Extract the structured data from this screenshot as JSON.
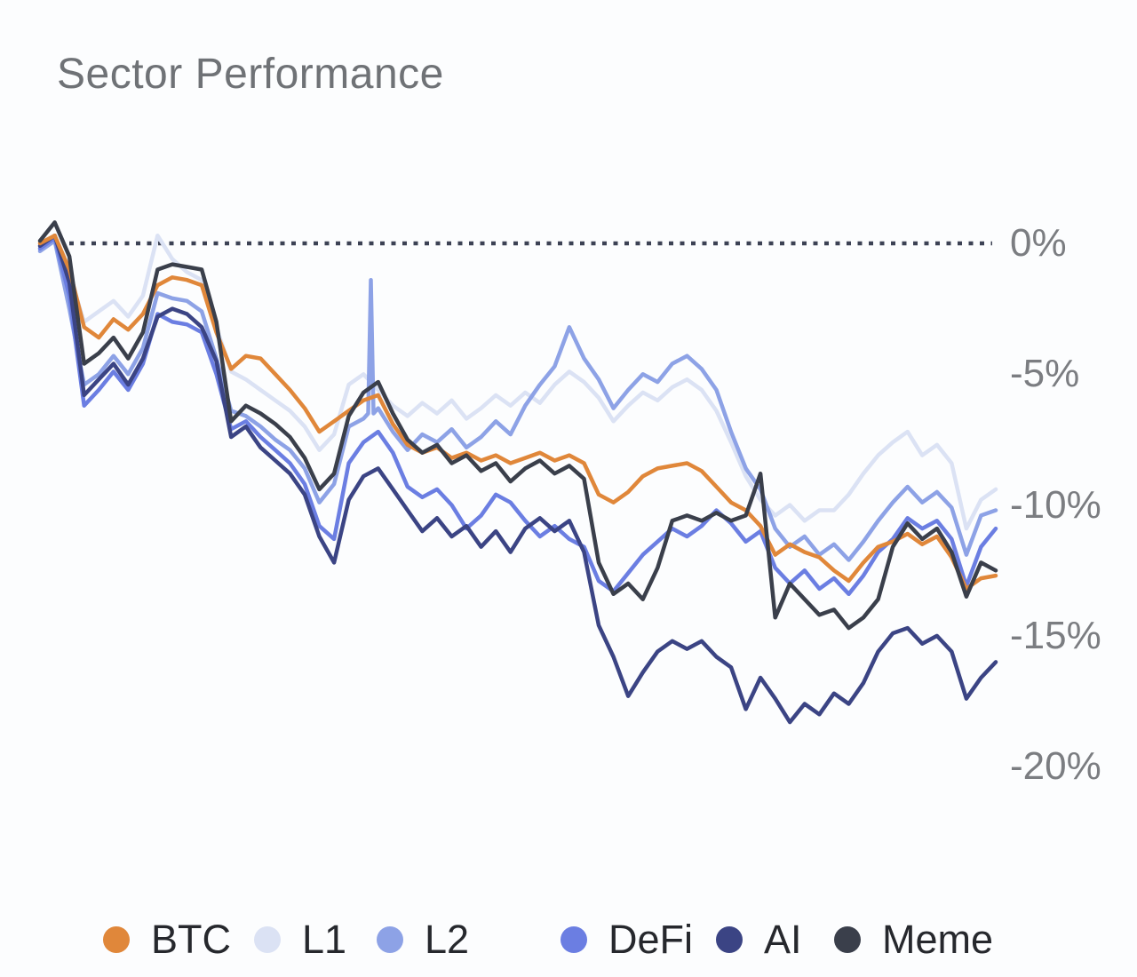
{
  "axis": {
    "ticks": [
      {
        "label": "0%",
        "pct": 0
      },
      {
        "label": "-5%",
        "pct": -5
      },
      {
        "label": "-10%",
        "pct": -10
      },
      {
        "label": "-15%",
        "pct": -15
      },
      {
        "label": "-20%",
        "pct": -20
      }
    ]
  },
  "zero_line": {
    "style": "dotted",
    "pct": 0,
    "color": "#3c4254"
  },
  "chart_data": {
    "type": "line",
    "title": "Sector Performance",
    "xlabel": "",
    "ylabel": "",
    "ylim": [
      -20,
      2
    ],
    "grid": false,
    "legend_position": "bottom",
    "y_tick_labels": [
      "0%",
      "-5%",
      "-10%",
      "-15%",
      "-20%"
    ],
    "series": [
      {
        "name": "BTC",
        "color": "#e0873a",
        "values": [
          0.0,
          0.3,
          -1.0,
          -3.2,
          -3.6,
          -2.9,
          -3.3,
          -2.7,
          -1.6,
          -1.3,
          -1.4,
          -1.6,
          -3.4,
          -4.8,
          -4.3,
          -4.4,
          -5.0,
          -5.6,
          -6.3,
          -7.2,
          -6.8,
          -6.4,
          -6.0,
          -5.8,
          -6.9,
          -7.7,
          -8.0,
          -7.8,
          -8.2,
          -8.0,
          -8.3,
          -8.1,
          -8.4,
          -8.2,
          -8.0,
          -8.3,
          -8.1,
          -8.4,
          -9.6,
          -9.9,
          -9.5,
          -8.9,
          -8.6,
          -8.5,
          -8.4,
          -8.7,
          -9.3,
          -9.9,
          -10.2,
          -10.8,
          -11.9,
          -11.5,
          -11.8,
          -12.0,
          -12.5,
          -12.9,
          -12.2,
          -11.6,
          -11.4,
          -11.1,
          -11.5,
          -11.2,
          -12.0,
          -13.2,
          -12.8,
          -12.7
        ]
      },
      {
        "name": "L1",
        "color": "#dbe2f4",
        "values": [
          -0.2,
          0.3,
          -1.2,
          -3.0,
          -2.6,
          -2.2,
          -2.8,
          -2.0,
          0.3,
          -0.6,
          -1.1,
          -1.4,
          -3.2,
          -4.9,
          -5.2,
          -5.6,
          -6.0,
          -6.4,
          -7.0,
          -7.9,
          -7.3,
          -5.4,
          -5.0,
          -5.6,
          -6.2,
          -6.6,
          -6.1,
          -6.5,
          -6.0,
          -6.7,
          -6.3,
          -5.8,
          -6.2,
          -5.7,
          -6.1,
          -5.4,
          -4.9,
          -5.3,
          -5.9,
          -6.8,
          -6.2,
          -5.7,
          -6.0,
          -5.5,
          -5.2,
          -5.6,
          -6.4,
          -7.6,
          -8.9,
          -9.8,
          -10.4,
          -10.0,
          -10.6,
          -10.2,
          -10.2,
          -9.6,
          -8.8,
          -8.1,
          -7.6,
          -7.2,
          -8.1,
          -7.7,
          -8.4,
          -10.9,
          -9.8,
          -9.4
        ]
      },
      {
        "name": "L2",
        "color": "#8da2e6",
        "spikes": [
          {
            "at": 22.5,
            "top": -1.4
          }
        ],
        "values": [
          -0.3,
          0.1,
          -2.5,
          -5.4,
          -5.0,
          -4.3,
          -5.0,
          -4.0,
          -1.9,
          -2.1,
          -2.2,
          -2.6,
          -4.4,
          -6.4,
          -6.6,
          -7.0,
          -7.5,
          -7.9,
          -8.6,
          -9.9,
          -9.2,
          -7.0,
          -6.7,
          -6.3,
          -7.2,
          -7.9,
          -7.3,
          -7.6,
          -7.1,
          -7.8,
          -7.4,
          -6.8,
          -7.3,
          -6.2,
          -5.4,
          -4.7,
          -3.2,
          -4.4,
          -5.2,
          -6.3,
          -5.6,
          -5.0,
          -5.3,
          -4.6,
          -4.3,
          -4.8,
          -5.6,
          -7.2,
          -8.6,
          -9.4,
          -10.9,
          -11.6,
          -11.2,
          -11.9,
          -11.5,
          -12.1,
          -11.4,
          -10.6,
          -9.9,
          -9.3,
          -9.9,
          -9.5,
          -10.1,
          -11.9,
          -10.4,
          -10.2
        ]
      },
      {
        "name": "DeFi",
        "color": "#6b7ee2",
        "values": [
          -0.2,
          0.2,
          -2.0,
          -6.2,
          -5.6,
          -4.9,
          -5.6,
          -4.6,
          -2.7,
          -3.0,
          -3.1,
          -3.4,
          -5.0,
          -7.1,
          -6.8,
          -7.4,
          -7.9,
          -8.4,
          -9.2,
          -10.8,
          -11.3,
          -8.4,
          -7.6,
          -7.2,
          -8.0,
          -9.3,
          -9.7,
          -9.4,
          -10.0,
          -10.9,
          -10.4,
          -9.6,
          -9.9,
          -10.6,
          -11.2,
          -10.8,
          -11.3,
          -11.6,
          -12.9,
          -13.3,
          -12.6,
          -11.9,
          -11.4,
          -10.9,
          -11.2,
          -10.8,
          -10.2,
          -10.7,
          -11.4,
          -11.0,
          -12.4,
          -13.0,
          -12.5,
          -13.2,
          -12.8,
          -13.4,
          -12.7,
          -11.8,
          -11.3,
          -10.5,
          -10.9,
          -10.6,
          -11.3,
          -13.1,
          -11.6,
          -10.9
        ]
      },
      {
        "name": "AI",
        "color": "#3b4484",
        "values": [
          -0.1,
          0.3,
          -1.5,
          -5.8,
          -5.2,
          -4.6,
          -5.4,
          -4.4,
          -2.8,
          -2.5,
          -2.7,
          -3.2,
          -4.5,
          -7.4,
          -7.0,
          -7.8,
          -8.3,
          -8.8,
          -9.6,
          -11.2,
          -12.2,
          -9.8,
          -8.9,
          -8.6,
          -9.4,
          -10.2,
          -11.0,
          -10.5,
          -11.2,
          -10.8,
          -11.6,
          -11.0,
          -11.8,
          -10.9,
          -10.5,
          -11.0,
          -10.6,
          -11.8,
          -14.6,
          -15.8,
          -17.3,
          -16.4,
          -15.6,
          -15.2,
          -15.5,
          -15.2,
          -15.8,
          -16.2,
          -17.8,
          -16.6,
          -17.4,
          -18.3,
          -17.6,
          -18.0,
          -17.2,
          -17.6,
          -16.8,
          -15.6,
          -14.9,
          -14.7,
          -15.3,
          -15.0,
          -15.6,
          -17.4,
          -16.6,
          -16.0
        ]
      },
      {
        "name": "Meme",
        "color": "#3a3f4b",
        "values": [
          0.1,
          0.8,
          -0.5,
          -4.6,
          -4.2,
          -3.6,
          -4.4,
          -3.4,
          -1.0,
          -0.8,
          -0.9,
          -1.0,
          -3.0,
          -6.8,
          -6.2,
          -6.5,
          -6.9,
          -7.4,
          -8.2,
          -9.4,
          -8.8,
          -6.6,
          -5.7,
          -5.3,
          -6.5,
          -7.5,
          -8.0,
          -7.7,
          -8.4,
          -8.1,
          -8.7,
          -8.4,
          -9.1,
          -8.6,
          -8.3,
          -8.8,
          -8.5,
          -9.0,
          -12.2,
          -13.4,
          -13.0,
          -13.6,
          -12.4,
          -10.6,
          -10.4,
          -10.6,
          -10.3,
          -10.6,
          -10.4,
          -8.8,
          -14.3,
          -13.0,
          -13.6,
          -14.2,
          -14.0,
          -14.7,
          -14.3,
          -13.6,
          -11.6,
          -10.7,
          -11.3,
          -10.9,
          -11.8,
          -13.5,
          -12.2,
          -12.5
        ]
      }
    ]
  }
}
